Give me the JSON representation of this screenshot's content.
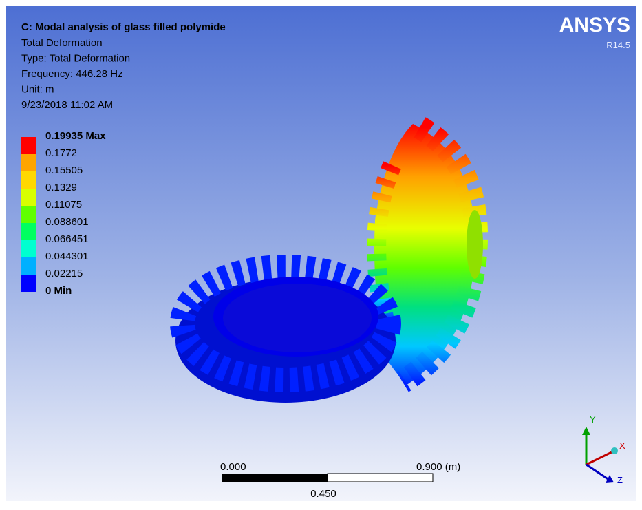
{
  "header": {
    "title": "C: Modal analysis of glass filled polymide",
    "lines": [
      "Total Deformation",
      "Type: Total Deformation",
      "Frequency: 446.28 Hz",
      "Unit: m",
      "9/23/2018 11:02 AM"
    ]
  },
  "logo": {
    "name": "ANSYS",
    "version": "R14.5"
  },
  "legend": {
    "labels": [
      "0.19935 Max",
      "0.1772",
      "0.15505",
      "0.1329",
      "0.11075",
      "0.088601",
      "0.066451",
      "0.044301",
      "0.02215",
      "0 Min"
    ]
  },
  "scale_bar": {
    "left": "0.000",
    "middle": "0.450",
    "right": "0.900 (m)"
  },
  "triad": {
    "y": "Y",
    "x": "X",
    "z": "Z"
  }
}
